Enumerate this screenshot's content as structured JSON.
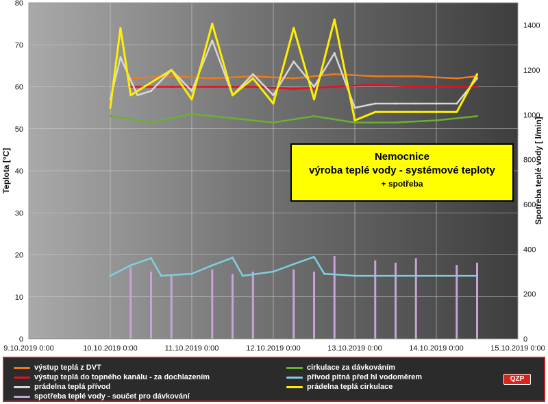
{
  "chart_data": {
    "type": "line",
    "title": "Nemocnice",
    "subtitle": "výroba teplé  vody - systémové teploty",
    "subtitle2": "+ spotřeba",
    "ylabel": "Teplota  [°C]",
    "y2label": "Spotřeba teplé vody [ l/min]",
    "xlim": [
      "2019-10-09 00:00",
      "2019-10-15 00:00"
    ],
    "ylim": [
      0,
      80
    ],
    "y2lim": [
      0,
      1500
    ],
    "x_ticks": [
      "9.10.2019 0:00",
      "10.10.2019 0:00",
      "11.10.2019 0:00",
      "12.10.2019 0:00",
      "13.10.2019 0:00",
      "14.10.2019 0:00",
      "15.10.2019 0:00"
    ],
    "y_ticks": [
      0,
      10,
      20,
      30,
      40,
      50,
      60,
      70,
      80
    ],
    "y2_ticks": [
      0,
      200,
      400,
      600,
      800,
      1000,
      1200,
      1400
    ],
    "grid": true,
    "legend_position": "bottom",
    "series": [
      {
        "name": "výstup teplá z DVT",
        "color": "#f07a1a",
        "axis": "left",
        "x": [
          "2019-10-10 06:00",
          "2019-10-10 18:00",
          "2019-10-11 06:00",
          "2019-10-11 18:00",
          "2019-10-12 06:00",
          "2019-10-12 18:00",
          "2019-10-13 06:00",
          "2019-10-13 18:00",
          "2019-10-14 06:00",
          "2019-10-14 12:00"
        ],
        "values": [
          62,
          62.5,
          62,
          62.5,
          62,
          63,
          62.5,
          62.5,
          62,
          62.5
        ]
      },
      {
        "name": "výstup teplá do topného kanálu - za dochlazením",
        "color": "#e8101c",
        "axis": "left",
        "x": [
          "2019-10-10 06:00",
          "2019-10-10 18:00",
          "2019-10-11 06:00",
          "2019-10-11 18:00",
          "2019-10-12 06:00",
          "2019-10-12 18:00",
          "2019-10-13 06:00",
          "2019-10-13 18:00",
          "2019-10-14 06:00",
          "2019-10-14 12:00"
        ],
        "values": [
          60,
          60,
          60,
          60,
          59.5,
          60,
          60.5,
          60,
          60,
          60
        ]
      },
      {
        "name": "prádelna teplá přívod",
        "color": "#d8d8d8",
        "axis": "left",
        "x": [
          "2019-10-10 00:00",
          "2019-10-10 03:00",
          "2019-10-10 08:00",
          "2019-10-10 12:00",
          "2019-10-10 18:00",
          "2019-10-11 00:00",
          "2019-10-11 06:00",
          "2019-10-11 12:00",
          "2019-10-11 18:00",
          "2019-10-12 00:00",
          "2019-10-12 06:00",
          "2019-10-12 12:00",
          "2019-10-12 18:00",
          "2019-10-13 00:00",
          "2019-10-13 06:00",
          "2019-10-13 12:00",
          "2019-10-13 18:00",
          "2019-10-14 00:00",
          "2019-10-14 06:00",
          "2019-10-14 12:00"
        ],
        "values": [
          57,
          67,
          58,
          59,
          64,
          59,
          71,
          58,
          63,
          58,
          66,
          60,
          68,
          55,
          56,
          56,
          56,
          56,
          56,
          62
        ]
      },
      {
        "name": "spotřeba teplé vody - součet pro dávkování",
        "color": "#c8a4d8",
        "axis": "right",
        "x": [
          "2019-10-10 06:00",
          "2019-10-10 12:00",
          "2019-10-10 18:00",
          "2019-10-11 06:00",
          "2019-10-11 12:00",
          "2019-10-11 18:00",
          "2019-10-12 06:00",
          "2019-10-12 12:00",
          "2019-10-12 18:00",
          "2019-10-13 06:00",
          "2019-10-13 12:00",
          "2019-10-13 18:00",
          "2019-10-14 06:00",
          "2019-10-14 12:00"
        ],
        "values": [
          320,
          300,
          280,
          310,
          290,
          300,
          310,
          300,
          370,
          350,
          340,
          360,
          330,
          340
        ]
      },
      {
        "name": "cirkulace za dávkováním",
        "color": "#6cb030",
        "axis": "left",
        "x": [
          "2019-10-10 00:00",
          "2019-10-10 12:00",
          "2019-10-11 00:00",
          "2019-10-11 12:00",
          "2019-10-12 00:00",
          "2019-10-12 12:00",
          "2019-10-13 00:00",
          "2019-10-13 12:00",
          "2019-10-14 00:00",
          "2019-10-14 12:00"
        ],
        "values": [
          53,
          51.5,
          53.5,
          52.5,
          51.5,
          53,
          51.5,
          51.5,
          52,
          53
        ]
      },
      {
        "name": "přívod pitná před hl vodoměrem",
        "color": "#7ed0e0",
        "axis": "left",
        "x": [
          "2019-10-10 00:00",
          "2019-10-10 06:00",
          "2019-10-10 12:00",
          "2019-10-10 15:00",
          "2019-10-11 00:00",
          "2019-10-11 06:00",
          "2019-10-11 12:00",
          "2019-10-11 15:00",
          "2019-10-12 00:00",
          "2019-10-12 06:00",
          "2019-10-12 12:00",
          "2019-10-12 15:00",
          "2019-10-13 00:00",
          "2019-10-13 12:00",
          "2019-10-14 00:00",
          "2019-10-14 12:00"
        ],
        "values": [
          15,
          17.5,
          19.2,
          15,
          15.5,
          17.5,
          19.3,
          15,
          16,
          17.8,
          19.5,
          15.5,
          15,
          15,
          15,
          15
        ]
      },
      {
        "name": "prádelna teplá cirkulace",
        "color": "#ffee00",
        "axis": "left",
        "x": [
          "2019-10-10 00:00",
          "2019-10-10 03:00",
          "2019-10-10 06:00",
          "2019-10-10 12:00",
          "2019-10-10 18:00",
          "2019-10-11 00:00",
          "2019-10-11 06:00",
          "2019-10-11 12:00",
          "2019-10-11 18:00",
          "2019-10-12 00:00",
          "2019-10-12 06:00",
          "2019-10-12 12:00",
          "2019-10-12 18:00",
          "2019-10-13 00:00",
          "2019-10-13 06:00",
          "2019-10-13 12:00",
          "2019-10-13 18:00",
          "2019-10-14 00:00",
          "2019-10-14 06:00",
          "2019-10-14 12:00"
        ],
        "values": [
          55,
          74,
          58,
          61,
          64,
          57,
          75,
          58,
          62,
          56,
          74,
          57,
          76,
          52,
          54,
          54,
          54,
          54,
          54,
          63
        ]
      }
    ]
  },
  "logo": {
    "text": "QZP"
  }
}
